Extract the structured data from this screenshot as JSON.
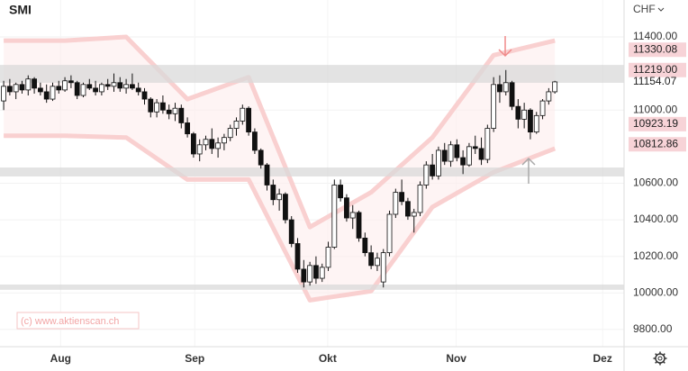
{
  "chart_data": {
    "type": "candlestick",
    "title": "SMI",
    "currency": "CHF",
    "watermark": "(c) www.aktienscan.ch",
    "xlim": [
      -0.6,
      101.3
    ],
    "ylim": [
      9706,
      11602
    ],
    "xticks": [
      {
        "value": 9.3,
        "label": "Aug"
      },
      {
        "value": 31.2,
        "label": "Sep"
      },
      {
        "value": 52.9,
        "label": "Okt"
      },
      {
        "value": 73.9,
        "label": "Nov"
      },
      {
        "value": 97.8,
        "label": "Dez"
      }
    ],
    "yticks": [
      {
        "value": 11400,
        "label": "11400.00"
      },
      {
        "value": 11000,
        "label": "11000.00"
      },
      {
        "value": 10600,
        "label": "10600.00"
      },
      {
        "value": 10400,
        "label": "10400.00"
      },
      {
        "value": 10200,
        "label": "10200.00"
      },
      {
        "value": 10000,
        "label": "10000.00"
      },
      {
        "value": 9800,
        "label": "9800.00"
      }
    ],
    "grid": true,
    "candles": {
      "open": [
        11050,
        11130,
        11100,
        11140,
        11110,
        11170,
        11120,
        11100,
        11060,
        11130,
        11110,
        11160,
        11150,
        11080,
        11140,
        11120,
        11100,
        11140,
        11130,
        11150,
        11120,
        11140,
        11120,
        11100,
        11060,
        10990,
        11040,
        11000,
        10980,
        11010,
        10930,
        10870,
        10760,
        10810,
        10840,
        10790,
        10820,
        10850,
        10900,
        10940,
        11010,
        10880,
        10780,
        10700,
        10590,
        10510,
        10540,
        10400,
        10270,
        10130,
        10060,
        10150,
        10080,
        10140,
        10250,
        10590,
        10520,
        10410,
        10440,
        10300,
        10220,
        10150,
        10060,
        10220,
        10430,
        10550,
        10500,
        10420,
        10440,
        10590,
        10700,
        10640,
        10780,
        10720,
        10810,
        10740,
        10700,
        10800,
        10790,
        10730,
        10900,
        11140,
        11100,
        11150,
        11020,
        10950,
        11000,
        10880,
        10970,
        11050,
        11100
      ],
      "high": [
        11160,
        11170,
        11150,
        11160,
        11190,
        11180,
        11150,
        11140,
        11150,
        11160,
        11180,
        11190,
        11160,
        11150,
        11170,
        11160,
        11150,
        11170,
        11200,
        11180,
        11170,
        11200,
        11150,
        11120,
        11070,
        11060,
        11080,
        11030,
        11040,
        11030,
        10960,
        10880,
        10840,
        10860,
        10900,
        10850,
        10870,
        10920,
        10960,
        11030,
        11020,
        10900,
        10790,
        10710,
        10620,
        10570,
        10550,
        10420,
        10300,
        10180,
        10170,
        10200,
        10160,
        10280,
        10620,
        10620,
        10540,
        10480,
        10450,
        10330,
        10260,
        10220,
        10240,
        10450,
        10570,
        10620,
        10520,
        10460,
        10610,
        10720,
        10760,
        10800,
        10820,
        10830,
        10840,
        10780,
        10820,
        10860,
        10850,
        10920,
        11180,
        11190,
        11219,
        11160,
        11060,
        11040,
        11010,
        10990,
        11060,
        11120,
        11160
      ],
      "low": [
        11000,
        11080,
        11060,
        11090,
        11080,
        11090,
        11080,
        11040,
        11050,
        11090,
        11100,
        11120,
        11060,
        11070,
        11110,
        11080,
        11080,
        11110,
        11100,
        11100,
        11090,
        11110,
        11080,
        11030,
        10960,
        10960,
        10980,
        10950,
        10940,
        10900,
        10850,
        10740,
        10720,
        10780,
        10760,
        10740,
        10780,
        10830,
        10860,
        10920,
        10860,
        10760,
        10680,
        10560,
        10480,
        10450,
        10380,
        10250,
        10110,
        10030,
        10040,
        10050,
        10060,
        10120,
        10240,
        10500,
        10390,
        10350,
        10280,
        10200,
        10130,
        10120,
        10030,
        10200,
        10410,
        10480,
        10400,
        10330,
        10420,
        10570,
        10620,
        10620,
        10700,
        10690,
        10720,
        10650,
        10690,
        10760,
        10700,
        10710,
        10880,
        11040,
        11080,
        11000,
        10900,
        10900,
        10840,
        10870,
        10950,
        11030,
        11090
      ],
      "close": [
        11130,
        11100,
        11140,
        11110,
        11170,
        11120,
        11100,
        11060,
        11130,
        11110,
        11160,
        11150,
        11080,
        11140,
        11120,
        11100,
        11140,
        11130,
        11150,
        11120,
        11140,
        11120,
        11100,
        11060,
        10990,
        11040,
        11000,
        10980,
        11010,
        10930,
        10870,
        10760,
        10810,
        10840,
        10790,
        10820,
        10850,
        10900,
        10940,
        11010,
        10880,
        10780,
        10700,
        10590,
        10510,
        10540,
        10400,
        10270,
        10130,
        10060,
        10150,
        10080,
        10140,
        10250,
        10590,
        10520,
        10410,
        10440,
        10300,
        10220,
        10150,
        10190,
        10220,
        10430,
        10550,
        10500,
        10420,
        10440,
        10590,
        10700,
        10640,
        10780,
        10720,
        10810,
        10740,
        10700,
        10800,
        10790,
        10730,
        10900,
        11140,
        11100,
        11150,
        11020,
        10950,
        11000,
        10880,
        10970,
        11050,
        11100,
        11154.07
      ]
    },
    "envelope": {
      "x": [
        0,
        10,
        20,
        30,
        40,
        50,
        60,
        70,
        80,
        90
      ],
      "upper": [
        11380,
        11380,
        11400,
        11060,
        11180,
        10360,
        10550,
        10850,
        11300,
        11380
      ],
      "lower": [
        10860,
        10860,
        10850,
        10620,
        10620,
        9960,
        10010,
        10470,
        10660,
        10790
      ]
    },
    "zones": [
      [
        11149,
        11247
      ],
      [
        10637,
        10686
      ],
      [
        10017,
        10046
      ]
    ],
    "price_labels": {
      "values": [
        11330.08,
        11219,
        11154.07,
        10923.19,
        10812.86
      ],
      "value_labels": [
        "11330.08",
        "11219.00",
        "11154.07",
        "10923.19",
        "10812.86"
      ],
      "highlight": [
        true,
        true,
        false,
        true,
        true
      ]
    }
  }
}
